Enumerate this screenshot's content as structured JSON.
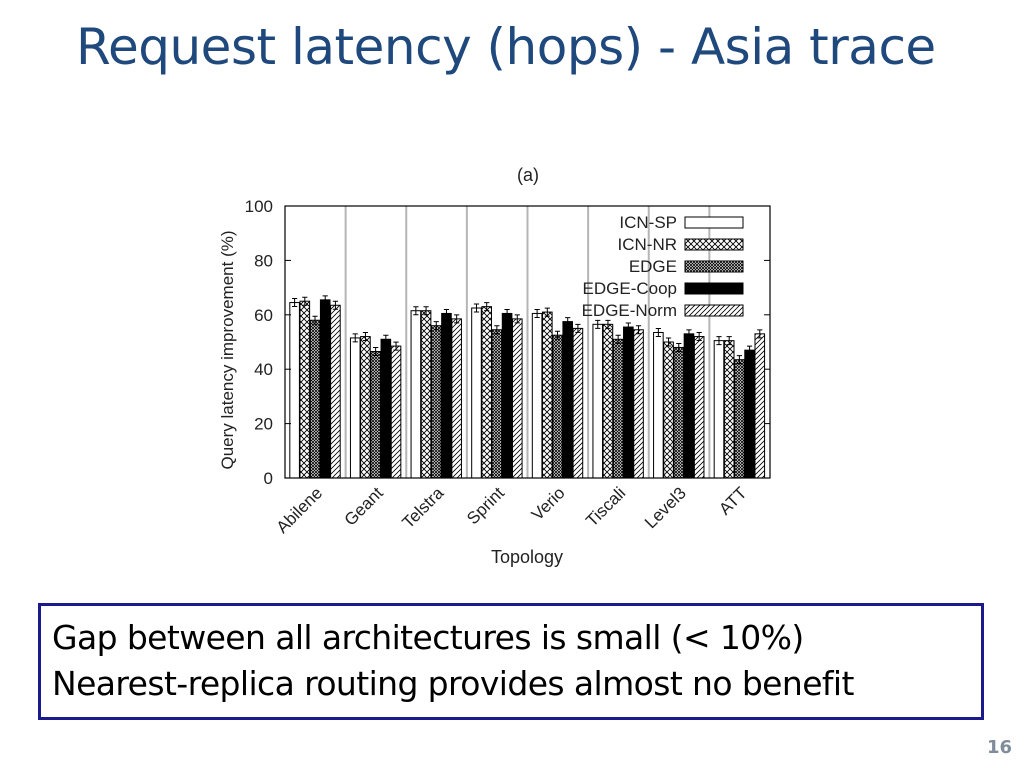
{
  "slide": {
    "title": "Request latency (hops) - Asia trace",
    "page_number": "16"
  },
  "callout": {
    "lines": [
      "Gap between all architectures is small (< 10%)",
      "Nearest-replica routing provides almost no benefit"
    ]
  },
  "colors": {
    "title": "#1f497d",
    "callout_border": "#1a1a8c",
    "page_number": "#7f8c9a"
  },
  "chart_data": {
    "type": "bar",
    "title": "(a)",
    "xlabel": "Topology",
    "ylabel": "Query latency improvement (%)",
    "ylim": [
      0,
      100
    ],
    "yticks": [
      0,
      20,
      40,
      60,
      80,
      100
    ],
    "grid": "vertical separators between topology groups",
    "legend_position": "top-right",
    "categories": [
      "Abilene",
      "Geant",
      "Telstra",
      "Sprint",
      "Verio",
      "Tiscali",
      "Level3",
      "ATT"
    ],
    "series": [
      {
        "name": "ICN-SP",
        "pattern": "white",
        "values": [
          64.5,
          51.5,
          61.5,
          62.5,
          60.5,
          56.5,
          53.5,
          50.5
        ]
      },
      {
        "name": "ICN-NR",
        "pattern": "crosshatch",
        "values": [
          65.0,
          52.0,
          61.5,
          63.0,
          61.0,
          56.5,
          50.0,
          50.5
        ]
      },
      {
        "name": "EDGE",
        "pattern": "dense-cross",
        "values": [
          58.0,
          46.5,
          56.0,
          54.5,
          52.5,
          51.0,
          48.0,
          43.5
        ]
      },
      {
        "name": "EDGE-Coop",
        "pattern": "black",
        "values": [
          65.5,
          51.0,
          60.5,
          60.5,
          57.5,
          55.5,
          53.0,
          47.0
        ]
      },
      {
        "name": "EDGE-Norm",
        "pattern": "diagonal",
        "values": [
          63.5,
          48.5,
          58.5,
          58.5,
          55.0,
          54.5,
          52.0,
          53.0
        ]
      }
    ]
  }
}
